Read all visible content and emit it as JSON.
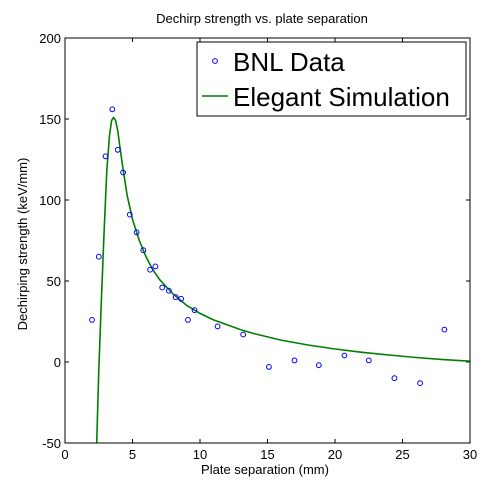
{
  "chart_data": {
    "type": "scatter",
    "title": "Dechirp strength vs. plate separation",
    "xlabel": "Plate separation (mm)",
    "ylabel": "Dechirping strength (keV/mm)",
    "xlim": [
      0,
      30
    ],
    "ylim": [
      -50,
      200
    ],
    "x_ticks": [
      0,
      5,
      10,
      15,
      20,
      25,
      30
    ],
    "y_ticks": [
      -50,
      0,
      50,
      100,
      150,
      200
    ],
    "grid": false,
    "legend_position": "top-right",
    "series": [
      {
        "name": "BNL Data",
        "type": "scatter",
        "color": "#0000ff",
        "marker": "circle",
        "x": [
          2.0,
          2.5,
          3.0,
          3.5,
          3.9,
          4.3,
          4.8,
          5.3,
          5.8,
          6.3,
          6.7,
          7.2,
          7.7,
          8.2,
          8.6,
          9.1,
          9.6,
          11.3,
          13.2,
          15.1,
          17.0,
          18.8,
          20.7,
          22.5,
          24.4,
          26.3,
          28.1
        ],
        "y": [
          26,
          65,
          127,
          156,
          131,
          117,
          91,
          80,
          69,
          57,
          59,
          46,
          44,
          40,
          39,
          26,
          32,
          22,
          17,
          -3,
          1,
          -2,
          4,
          1,
          -10,
          -13,
          20
        ]
      },
      {
        "name": "Elegant Simulation",
        "type": "line",
        "color": "#007f00",
        "x": [
          2.35,
          2.5,
          2.7,
          2.9,
          3.1,
          3.3,
          3.45,
          3.6,
          3.75,
          3.9,
          4.1,
          4.3,
          4.6,
          5.0,
          5.5,
          6.0,
          6.5,
          7.0,
          8.0,
          9.0,
          10.0,
          11.0,
          12.0,
          13.0,
          14.0,
          15.0,
          16.0,
          18.0,
          20.0,
          22.0,
          24.0,
          26.0,
          28.0,
          30.0
        ],
        "y": [
          -50,
          -5,
          40,
          82,
          118,
          140,
          149,
          151,
          149,
          143,
          131,
          119,
          103,
          88,
          75,
          65,
          57,
          51,
          42,
          35,
          30,
          26,
          23,
          20,
          17.5,
          15.5,
          13.5,
          10.5,
          8,
          6,
          4.3,
          2.8,
          1.5,
          0.5
        ]
      }
    ]
  }
}
